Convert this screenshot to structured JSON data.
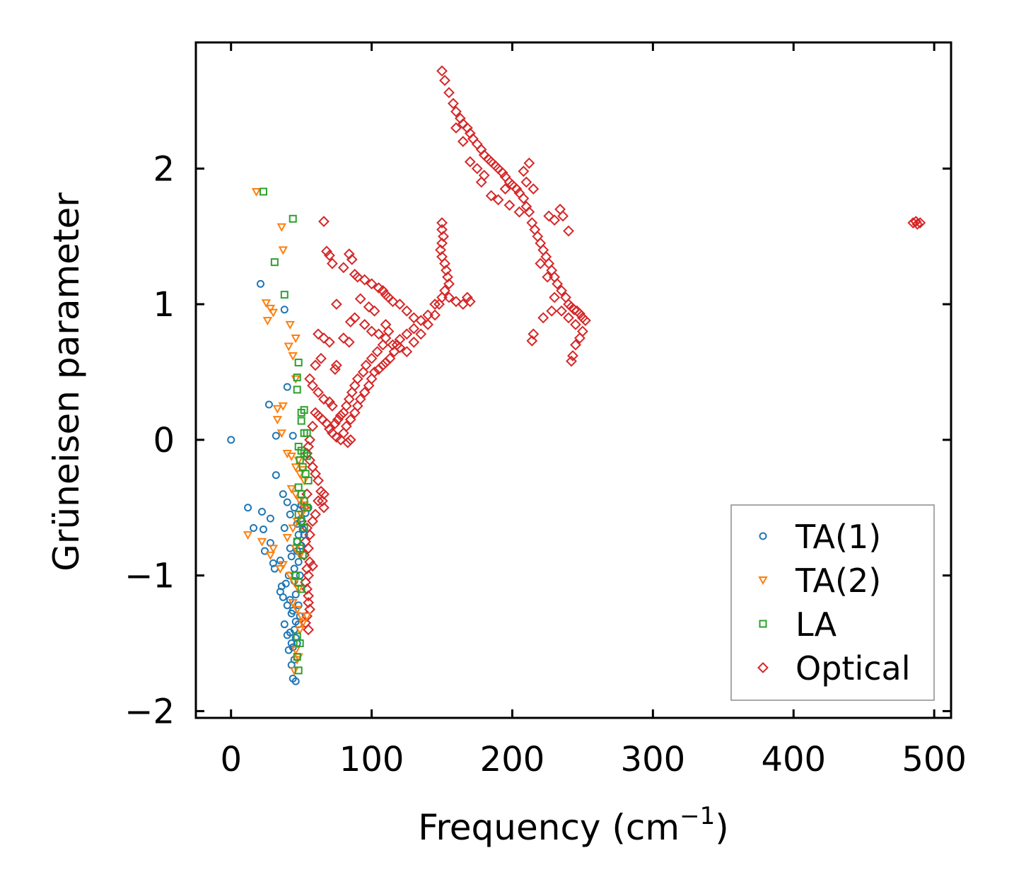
{
  "chart_data": {
    "type": "scatter",
    "title": "",
    "xlabel": "Frequency (cm",
    "xlabel_sup": "−1",
    "xlabel_close": ")",
    "ylabel": "Grüneisen parameter",
    "xlim": [
      -25,
      512
    ],
    "ylim": [
      -2.05,
      2.93
    ],
    "xticks": [
      0,
      100,
      200,
      300,
      400,
      500
    ],
    "yticks": [
      -2,
      -1,
      0,
      1,
      2
    ],
    "xtick_labels": [
      "0",
      "100",
      "200",
      "300",
      "400",
      "500"
    ],
    "ytick_labels": [
      "−2",
      "−1",
      "0",
      "1",
      "2"
    ],
    "legend_position": "lower-right",
    "series": [
      {
        "name": "TA(1)",
        "marker": "circle",
        "color": "#1f77b4",
        "x": [
          0,
          21,
          38,
          27,
          40,
          32,
          44,
          32,
          37,
          40,
          12,
          16,
          22,
          28,
          38,
          42,
          45,
          50,
          24,
          30,
          35,
          42,
          47,
          52,
          23,
          28,
          31,
          36,
          39,
          41,
          45,
          48,
          35,
          37,
          40,
          43,
          46,
          49,
          42,
          45,
          48,
          38,
          40,
          43,
          46,
          41,
          44,
          47,
          43,
          45,
          44,
          46,
          47,
          50,
          53,
          55,
          48,
          51,
          43,
          47,
          50,
          45,
          49,
          42,
          46,
          44,
          48
        ],
        "y": [
          0.0,
          1.15,
          0.96,
          0.26,
          0.39,
          0.03,
          0.03,
          -0.26,
          -0.4,
          -0.46,
          -0.5,
          -0.65,
          -0.53,
          -0.58,
          -0.65,
          -0.55,
          -0.5,
          -0.48,
          -0.82,
          -0.91,
          -0.89,
          -0.8,
          -0.75,
          -0.7,
          -0.66,
          -0.76,
          -0.95,
          -1.08,
          -1.06,
          -1.0,
          -0.95,
          -0.9,
          -1.12,
          -1.16,
          -1.22,
          -1.28,
          -1.34,
          -1.3,
          -1.42,
          -1.4,
          -1.36,
          -1.36,
          -1.44,
          -1.5,
          -1.46,
          -1.55,
          -1.53,
          -1.5,
          -1.66,
          -1.62,
          -1.76,
          -1.78,
          -0.62,
          -0.58,
          -0.54,
          -0.5,
          -0.7,
          -0.66,
          -0.86,
          -0.82,
          -0.78,
          -1.04,
          -1.0,
          -1.18,
          -1.14,
          -1.26,
          -1.22
        ]
      },
      {
        "name": "TA(2)",
        "marker": "triangle-down",
        "color": "#ff7f0e",
        "x": [
          18,
          36,
          37,
          25,
          28,
          26,
          30,
          42,
          44,
          46,
          41,
          46,
          33,
          36,
          33,
          37,
          40,
          43,
          46,
          49,
          52,
          12,
          22,
          28,
          30,
          35,
          40,
          44,
          47,
          50,
          53,
          37,
          42,
          45,
          48,
          44,
          47,
          50,
          46,
          48,
          45,
          47,
          49,
          51,
          54,
          43,
          46,
          49,
          52,
          48,
          51,
          46,
          49
        ],
        "y": [
          1.83,
          1.57,
          1.4,
          1.01,
          0.97,
          0.88,
          0.94,
          0.85,
          0.62,
          0.75,
          0.69,
          0.45,
          0.15,
          0.05,
          0.23,
          0.25,
          -0.1,
          -0.12,
          -0.2,
          -0.25,
          -0.3,
          -0.7,
          -0.75,
          -0.85,
          -0.8,
          -0.95,
          -0.72,
          -0.65,
          -0.6,
          -0.55,
          -0.5,
          -0.92,
          -1.0,
          -1.05,
          -1.1,
          -1.2,
          -1.25,
          -1.3,
          -1.55,
          -1.6,
          -1.7,
          -1.62,
          -1.4,
          -1.35,
          -1.3,
          -0.36,
          -0.4,
          -0.45,
          -0.48,
          -0.15,
          -0.22,
          -0.8,
          -0.85
        ]
      },
      {
        "name": "LA",
        "marker": "square",
        "color": "#2ca02c",
        "x": [
          23,
          44,
          31,
          38,
          48,
          47,
          47,
          50,
          52,
          50,
          52,
          54,
          48,
          50,
          52,
          54,
          49,
          51,
          53,
          55,
          48,
          50,
          52,
          54,
          48,
          50,
          52,
          47,
          49,
          51,
          46,
          48,
          50,
          47,
          49,
          47,
          48
        ],
        "y": [
          1.83,
          1.63,
          1.31,
          1.07,
          0.57,
          0.46,
          0.37,
          0.2,
          0.22,
          0.14,
          0.05,
          0.05,
          -0.05,
          -0.08,
          -0.1,
          -0.12,
          -0.15,
          -0.2,
          -0.25,
          -0.3,
          -0.35,
          -0.4,
          -0.45,
          -0.5,
          -0.55,
          -0.6,
          -0.65,
          -0.75,
          -0.8,
          -0.85,
          -1.0,
          -1.05,
          -1.1,
          -1.45,
          -1.5,
          -1.6,
          -1.7
        ]
      },
      {
        "name": "Optical",
        "marker": "diamond",
        "color": "#d62728",
        "points": [
          [
            150,
            2.72
          ],
          [
            152,
            2.65
          ],
          [
            155,
            2.56
          ],
          [
            158,
            2.48
          ],
          [
            160,
            2.42
          ],
          [
            163,
            2.37
          ],
          [
            165,
            2.33
          ],
          [
            168,
            2.3
          ],
          [
            170,
            2.26
          ],
          [
            172,
            2.22
          ],
          [
            175,
            2.18
          ],
          [
            178,
            2.14
          ],
          [
            180,
            2.1
          ],
          [
            183,
            2.07
          ],
          [
            185,
            2.05
          ],
          [
            188,
            2.02
          ],
          [
            190,
            2.0
          ],
          [
            193,
            1.97
          ],
          [
            195,
            1.94
          ],
          [
            198,
            1.9
          ],
          [
            200,
            1.88
          ],
          [
            203,
            1.85
          ],
          [
            205,
            1.82
          ],
          [
            208,
            1.78
          ],
          [
            210,
            1.72
          ],
          [
            212,
            1.68
          ],
          [
            214,
            1.6
          ],
          [
            216,
            1.55
          ],
          [
            218,
            1.5
          ],
          [
            220,
            1.45
          ],
          [
            222,
            1.4
          ],
          [
            224,
            1.35
          ],
          [
            226,
            1.3
          ],
          [
            228,
            1.25
          ],
          [
            230,
            1.2
          ],
          [
            232,
            1.15
          ],
          [
            235,
            1.1
          ],
          [
            238,
            1.05
          ],
          [
            240,
            1.0
          ],
          [
            242,
            0.98
          ],
          [
            244,
            0.96
          ],
          [
            246,
            0.95
          ],
          [
            248,
            0.93
          ],
          [
            250,
            0.9
          ],
          [
            252,
            0.88
          ],
          [
            250,
            0.8
          ],
          [
            248,
            0.75
          ],
          [
            245,
            0.7
          ],
          [
            243,
            0.62
          ],
          [
            242,
            0.58
          ],
          [
            228,
            0.95
          ],
          [
            222,
            0.9
          ],
          [
            215,
            0.78
          ],
          [
            214,
            0.73
          ],
          [
            226,
            1.65
          ],
          [
            230,
            1.62
          ],
          [
            234,
            1.7
          ],
          [
            236,
            1.65
          ],
          [
            240,
            1.54
          ],
          [
            212,
            2.04
          ],
          [
            208,
            1.98
          ],
          [
            178,
            1.9
          ],
          [
            185,
            1.8
          ],
          [
            190,
            1.77
          ],
          [
            198,
            1.73
          ],
          [
            205,
            1.68
          ],
          [
            220,
            1.3
          ],
          [
            225,
            1.2
          ],
          [
            230,
            1.05
          ],
          [
            235,
            0.95
          ],
          [
            240,
            0.9
          ],
          [
            245,
            0.85
          ],
          [
            165,
            2.2
          ],
          [
            170,
            2.05
          ],
          [
            175,
            2.0
          ],
          [
            180,
            1.95
          ],
          [
            160,
            2.3
          ],
          [
            210,
            1.9
          ],
          [
            215,
            1.85
          ],
          [
            195,
            1.85
          ],
          [
            66,
            1.61
          ],
          [
            68,
            1.39
          ],
          [
            70,
            1.36
          ],
          [
            72,
            1.3
          ],
          [
            84,
            1.37
          ],
          [
            86,
            1.33
          ],
          [
            80,
            1.27
          ],
          [
            88,
            1.22
          ],
          [
            90,
            1.2
          ],
          [
            95,
            1.18
          ],
          [
            100,
            1.15
          ],
          [
            105,
            1.12
          ],
          [
            108,
            1.1
          ],
          [
            110,
            1.07
          ],
          [
            112,
            1.05
          ],
          [
            115,
            1.02
          ],
          [
            75,
            1.0
          ],
          [
            92,
            1.04
          ],
          [
            98,
            0.98
          ],
          [
            102,
            0.95
          ],
          [
            85,
            0.87
          ],
          [
            88,
            0.9
          ],
          [
            80,
            0.75
          ],
          [
            84,
            0.72
          ],
          [
            95,
            0.85
          ],
          [
            100,
            0.8
          ],
          [
            105,
            0.78
          ],
          [
            110,
            0.75
          ],
          [
            115,
            0.7
          ],
          [
            120,
            0.68
          ],
          [
            125,
            0.65
          ],
          [
            130,
            0.72
          ],
          [
            135,
            0.78
          ],
          [
            140,
            0.85
          ],
          [
            145,
            0.92
          ],
          [
            148,
            1.0
          ],
          [
            150,
            1.05
          ],
          [
            152,
            1.1
          ],
          [
            155,
            1.05
          ],
          [
            160,
            1.02
          ],
          [
            165,
            1.0
          ],
          [
            168,
            1.05
          ],
          [
            170,
            1.02
          ],
          [
            150,
            1.6
          ],
          [
            150,
            1.55
          ],
          [
            151,
            1.5
          ],
          [
            150,
            1.45
          ],
          [
            149,
            1.4
          ],
          [
            150,
            1.35
          ],
          [
            152,
            1.3
          ],
          [
            153,
            1.25
          ],
          [
            154,
            1.2
          ],
          [
            155,
            1.15
          ],
          [
            145,
            1.0
          ],
          [
            140,
            0.92
          ],
          [
            135,
            0.88
          ],
          [
            130,
            0.82
          ],
          [
            125,
            0.78
          ],
          [
            120,
            0.74
          ],
          [
            118,
            0.7
          ],
          [
            116,
            0.65
          ],
          [
            113,
            0.6
          ],
          [
            110,
            0.57
          ],
          [
            108,
            0.55
          ],
          [
            105,
            0.52
          ],
          [
            102,
            0.5
          ],
          [
            100,
            0.45
          ],
          [
            98,
            0.4
          ],
          [
            95,
            0.35
          ],
          [
            92,
            0.3
          ],
          [
            90,
            0.25
          ],
          [
            88,
            0.2
          ],
          [
            85,
            0.15
          ],
          [
            82,
            0.1
          ],
          [
            80,
            0.05
          ],
          [
            78,
            0.0
          ],
          [
            75,
            0.02
          ],
          [
            72,
            0.05
          ],
          [
            70,
            0.08
          ],
          [
            68,
            0.12
          ],
          [
            65,
            0.15
          ],
          [
            62,
            0.18
          ],
          [
            60,
            0.2
          ],
          [
            58,
            0.1
          ],
          [
            56,
            0.0
          ],
          [
            55,
            -0.05
          ],
          [
            54,
            -0.1
          ],
          [
            56,
            -0.15
          ],
          [
            58,
            -0.2
          ],
          [
            60,
            -0.25
          ],
          [
            62,
            -0.3
          ],
          [
            64,
            -0.38
          ],
          [
            65,
            -0.45
          ],
          [
            66,
            -0.5
          ],
          [
            60,
            -0.55
          ],
          [
            58,
            -0.6
          ],
          [
            56,
            -0.7
          ],
          [
            55,
            -0.8
          ],
          [
            56,
            -0.9
          ],
          [
            58,
            -0.93
          ],
          [
            55,
            -1.0
          ],
          [
            54,
            -1.1
          ],
          [
            55,
            -1.2
          ],
          [
            54,
            -1.3
          ],
          [
            55,
            -1.4
          ],
          [
            53,
            -1.35
          ],
          [
            120,
            1.0
          ],
          [
            125,
            0.95
          ],
          [
            130,
            0.9
          ],
          [
            110,
            0.85
          ],
          [
            112,
            0.8
          ],
          [
            108,
            0.7
          ],
          [
            104,
            0.65
          ],
          [
            100,
            0.6
          ],
          [
            96,
            0.55
          ],
          [
            94,
            0.5
          ],
          [
            90,
            0.45
          ],
          [
            88,
            0.4
          ],
          [
            86,
            0.35
          ],
          [
            84,
            0.3
          ],
          [
            82,
            0.25
          ],
          [
            80,
            0.2
          ],
          [
            78,
            0.18
          ],
          [
            76,
            0.15
          ],
          [
            74,
            0.12
          ],
          [
            72,
            0.25
          ],
          [
            70,
            0.28
          ],
          [
            66,
            0.3
          ],
          [
            62,
            0.35
          ],
          [
            58,
            0.4
          ],
          [
            56,
            0.45
          ],
          [
            60,
            0.55
          ],
          [
            64,
            0.6
          ],
          [
            66,
            0.75
          ],
          [
            70,
            0.72
          ],
          [
            62,
            0.78
          ],
          [
            75,
            0.55
          ],
          [
            74,
            0.52
          ],
          [
            85,
            0.0
          ],
          [
            83,
            -0.02
          ],
          [
            50,
            -0.6
          ],
          [
            52,
            -0.5
          ],
          [
            54,
            -0.4
          ],
          [
            53,
            -0.75
          ],
          [
            52,
            -0.85
          ],
          [
            54,
            -0.95
          ],
          [
            53,
            -1.05
          ],
          [
            55,
            -1.15
          ],
          [
            56,
            -1.25
          ],
          [
            54,
            -0.65
          ],
          [
            62,
            -0.45
          ],
          [
            66,
            -0.4
          ],
          [
            487,
            1.61
          ],
          [
            485,
            1.6
          ],
          [
            488,
            1.59
          ],
          [
            490,
            1.6
          ]
        ]
      }
    ]
  }
}
